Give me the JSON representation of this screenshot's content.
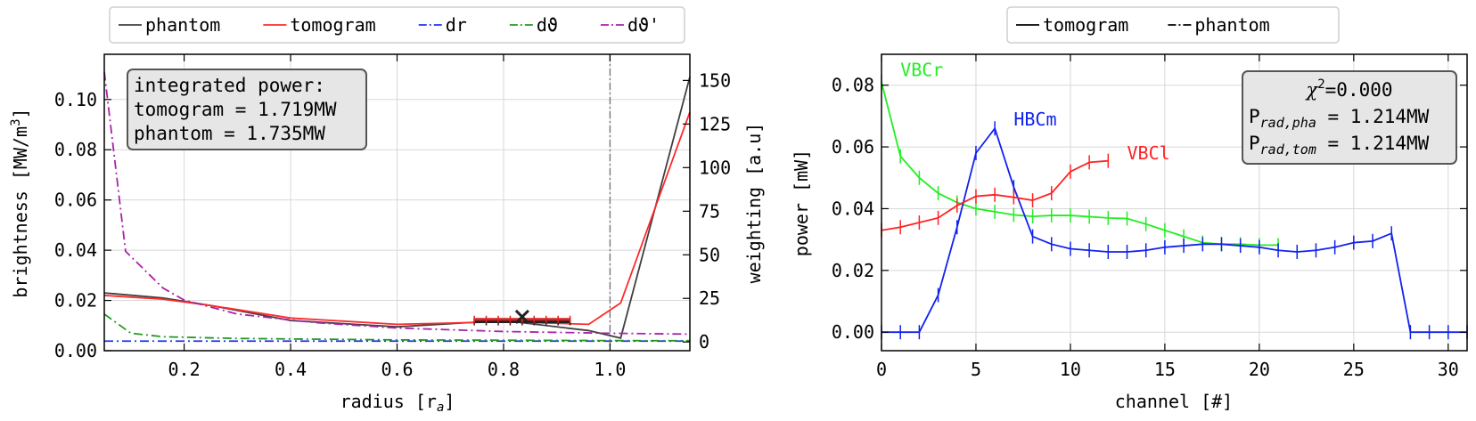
{
  "chart_data": [
    {
      "type": "line",
      "xlabel": "radius [r",
      "xlabel_sub": "a",
      "xlabel_end": "]",
      "ylabel": "brightness [MW/m",
      "ylabel_sup": "3",
      "ylabel_end": "]",
      "y2label": "weighting [a.u]",
      "xlim": [
        0.05,
        1.15
      ],
      "ylim": [
        0,
        0.118
      ],
      "y2lim": [
        -5,
        165
      ],
      "xticks": [
        "0.2",
        "0.4",
        "0.6",
        "0.8",
        "1.0"
      ],
      "xtick_values": [
        0.2,
        0.4,
        0.6,
        0.8,
        1.0
      ],
      "yticks": [
        "0.00",
        "0.02",
        "0.04",
        "0.06",
        "0.08",
        "0.10"
      ],
      "ytick_values": [
        0,
        0.02,
        0.04,
        0.06,
        0.08,
        0.1
      ],
      "y2ticks": [
        "0",
        "25",
        "50",
        "75",
        "100",
        "125",
        "150"
      ],
      "y2tick_values": [
        0,
        25,
        50,
        75,
        100,
        125,
        150
      ],
      "grid": true,
      "vline_x": 1.0,
      "legend": [
        {
          "label": "phantom",
          "color": "#404040",
          "dash": "solid"
        },
        {
          "label": "tomogram",
          "color": "#ff2a2a",
          "dash": "solid"
        },
        {
          "label": "dr",
          "color": "#2233ee",
          "dash": "dashdot"
        },
        {
          "label": "dϑ",
          "color": "#229922",
          "dash": "dashdot"
        },
        {
          "label": "dϑ'",
          "color": "#aa22aa",
          "dash": "dashdot"
        }
      ],
      "series": [
        {
          "name": "phantom",
          "color": "#404040",
          "axis": "left",
          "dash": "solid",
          "x": [
            0.05,
            0.16,
            0.25,
            0.4,
            0.6,
            0.8,
            0.96,
            1.02,
            1.15
          ],
          "y": [
            0.023,
            0.021,
            0.018,
            0.012,
            0.0095,
            0.012,
            0.008,
            0.005,
            0.109
          ]
        },
        {
          "name": "tomogram",
          "color": "#ff2a2a",
          "axis": "left",
          "dash": "solid",
          "x": [
            0.05,
            0.16,
            0.25,
            0.4,
            0.6,
            0.8,
            0.96,
            1.02,
            1.15
          ],
          "y": [
            0.022,
            0.0205,
            0.018,
            0.013,
            0.0105,
            0.0115,
            0.0105,
            0.019,
            0.095
          ]
        },
        {
          "name": "dr",
          "color": "#2233ee",
          "axis": "right",
          "dash": "dashdot",
          "x": [
            0.05,
            1.15
          ],
          "y": [
            0.5,
            0.5
          ]
        },
        {
          "name": "dϑ",
          "color": "#229922",
          "axis": "right",
          "dash": "dashdot",
          "x": [
            0.05,
            0.1,
            0.16,
            0.3,
            0.6,
            1.0,
            1.15
          ],
          "y": [
            16,
            5,
            3,
            2,
            1.2,
            0.8,
            0.7
          ]
        },
        {
          "name": "dϑ'",
          "color": "#aa22aa",
          "axis": "right",
          "dash": "dashdot",
          "x": [
            0.05,
            0.09,
            0.16,
            0.2,
            0.3,
            0.45,
            0.6,
            0.8,
            1.0,
            1.15
          ],
          "y": [
            155,
            52,
            31,
            24,
            16,
            11,
            8,
            6,
            5,
            4.5
          ]
        }
      ],
      "marker": {
        "type": "x",
        "x": 0.835,
        "y": 0.0135,
        "color": "#222222"
      },
      "errorbars": [
        {
          "x": 0.835,
          "y": 0.0115,
          "xerr": 0.09,
          "color": "#222222"
        },
        {
          "x": 0.835,
          "y": 0.0125,
          "xerr": 0.09,
          "color": "#dd2222"
        }
      ],
      "annotation": {
        "lines": [
          "integrated power:",
          "tomogram = 1.719MW",
          "phantom = 1.735MW"
        ]
      }
    },
    {
      "type": "line",
      "xlabel": "channel [#]",
      "ylabel": "power [mW]",
      "xlim": [
        0,
        31
      ],
      "ylim": [
        -0.006,
        0.09
      ],
      "xticks": [
        "0",
        "5",
        "10",
        "15",
        "20",
        "25",
        "30"
      ],
      "xtick_values": [
        0,
        5,
        10,
        15,
        20,
        25,
        30
      ],
      "yticks": [
        "0.00",
        "0.02",
        "0.04",
        "0.06",
        "0.08"
      ],
      "ytick_values": [
        0,
        0.02,
        0.04,
        0.06,
        0.08
      ],
      "grid": true,
      "legend": [
        {
          "label": "tomogram",
          "color": "#000000",
          "dash": "solid"
        },
        {
          "label": "phantom",
          "color": "#000000",
          "dash": "dashdot"
        }
      ],
      "series": [
        {
          "name": "VBCr",
          "color": "#22ee22",
          "x": [
            0,
            1,
            2,
            3,
            4,
            5,
            6,
            7,
            8,
            9,
            10,
            11,
            12,
            13,
            14,
            15,
            16,
            17,
            18,
            19,
            20,
            21
          ],
          "y": [
            0.081,
            0.057,
            0.05,
            0.045,
            0.042,
            0.04,
            0.039,
            0.038,
            0.0375,
            0.0378,
            0.0378,
            0.0374,
            0.037,
            0.0368,
            0.035,
            0.033,
            0.031,
            0.029,
            0.0285,
            0.0285,
            0.0282,
            0.0282
          ]
        },
        {
          "name": "HBCm",
          "color": "#1122ee",
          "x": [
            0,
            1,
            2,
            3,
            4,
            5,
            6,
            7,
            8,
            9,
            10,
            11,
            12,
            13,
            14,
            15,
            16,
            17,
            18,
            19,
            20,
            21,
            22,
            23,
            24,
            25,
            26,
            27,
            28,
            29,
            30,
            31
          ],
          "y": [
            0,
            0,
            0,
            0.012,
            0.034,
            0.058,
            0.066,
            0.047,
            0.031,
            0.0285,
            0.027,
            0.0265,
            0.026,
            0.026,
            0.0265,
            0.0275,
            0.028,
            0.0285,
            0.0285,
            0.028,
            0.0275,
            0.0265,
            0.026,
            0.0265,
            0.0275,
            0.029,
            0.0295,
            0.032,
            0,
            0,
            0,
            0
          ]
        },
        {
          "name": "VBCl",
          "color": "#ff2222",
          "x": [
            0,
            1,
            2,
            3,
            4,
            5,
            6,
            7,
            8,
            9,
            10,
            11,
            12
          ],
          "y": [
            0.033,
            0.034,
            0.0355,
            0.037,
            0.041,
            0.044,
            0.0445,
            0.0437,
            0.0427,
            0.045,
            0.052,
            0.055,
            0.0555
          ]
        }
      ],
      "labels": [
        {
          "text": "VBCr",
          "color": "#22ee22",
          "x": 1.0,
          "y": 0.083
        },
        {
          "text": "HBCm",
          "color": "#1122ee",
          "x": 7.0,
          "y": 0.067
        },
        {
          "text": "VBCl",
          "color": "#ff2222",
          "x": 13.0,
          "y": 0.056
        }
      ],
      "annotation": {
        "chi": "=0.000",
        "pha_label": "rad,pha",
        "pha_value": " = 1.214MW",
        "tom_label": "rad,tom",
        "tom_value": " = 1.214MW"
      }
    }
  ]
}
